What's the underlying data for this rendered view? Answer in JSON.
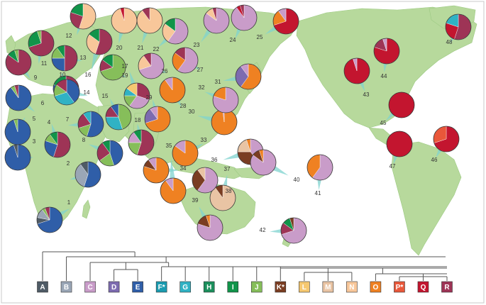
{
  "haplogroups": [
    {
      "label": "A",
      "color": "#4f5b66"
    },
    {
      "label": "B",
      "color": "#9aa6b6"
    },
    {
      "label": "C",
      "color": "#c99cc9"
    },
    {
      "label": "D",
      "color": "#7d6bb0"
    },
    {
      "label": "E",
      "color": "#2f5ea8"
    },
    {
      "label": "F*",
      "color": "#1a9bb0"
    },
    {
      "label": "G",
      "color": "#30b2c4"
    },
    {
      "label": "H",
      "color": "#1b8f5c"
    },
    {
      "label": "I",
      "color": "#11944a"
    },
    {
      "label": "J",
      "color": "#86be5a"
    },
    {
      "label": "K*",
      "color": "#7a3d22"
    },
    {
      "label": "L",
      "color": "#f5c871"
    },
    {
      "label": "M",
      "color": "#e9c4a4"
    },
    {
      "label": "N",
      "color": "#f8c79a"
    },
    {
      "label": "O",
      "color": "#ef8122"
    },
    {
      "label": "P*",
      "color": "#e9573a"
    },
    {
      "label": "Q",
      "color": "#c3152f"
    },
    {
      "label": "R",
      "color": "#9e3456"
    }
  ],
  "populations": [
    {
      "id": "1",
      "slices": {
        "E": 70,
        "A": 8,
        "B": 12,
        "J": 4,
        "R": 6
      }
    },
    {
      "id": "2",
      "slices": {
        "E": 55,
        "B": 35,
        "A": 10
      }
    },
    {
      "id": "3",
      "slices": {
        "E": 95,
        "A": 5
      }
    },
    {
      "id": "4",
      "slices": {
        "R": 55,
        "E": 25,
        "J": 10,
        "I": 10
      }
    },
    {
      "id": "5",
      "slices": {
        "E": 95,
        "J": 5
      }
    },
    {
      "id": "6",
      "slices": {
        "E": 90,
        "J": 5,
        "R": 5
      }
    },
    {
      "id": "7",
      "slices": {
        "E": 55,
        "J": 15,
        "R": 20,
        "G": 10
      }
    },
    {
      "id": "8",
      "slices": {
        "E": 45,
        "J": 20,
        "R": 25,
        "I": 10
      }
    },
    {
      "id": "9",
      "slices": {
        "R": 85,
        "I": 10,
        "J": 5
      }
    },
    {
      "id": "10",
      "slices": {
        "R": 40,
        "F*": 20,
        "E": 20,
        "I": 20
      }
    },
    {
      "id": "11",
      "slices": {
        "R": 70,
        "I": 25,
        "J": 5
      }
    },
    {
      "id": "12",
      "slices": {
        "N": 55,
        "R": 25,
        "I": 20
      }
    },
    {
      "id": "13",
      "slices": {
        "R": 50,
        "E": 25,
        "J": 15,
        "I": 10
      }
    },
    {
      "id": "14",
      "slices": {
        "E": 40,
        "G": 30,
        "J": 15,
        "R": 15
      }
    },
    {
      "id": "15",
      "slices": {
        "J": 45,
        "G": 30,
        "R": 15,
        "E": 10
      }
    },
    {
      "id": "16",
      "slices": {
        "R": 55,
        "N": 30,
        "I": 15
      }
    },
    {
      "id": "17",
      "slices": {
        "R": 30,
        "C": 30,
        "J": 15,
        "G": 10,
        "L": 15
      }
    },
    {
      "id": "18",
      "slices": {
        "R": 55,
        "J": 20,
        "C": 15,
        "I": 10
      }
    },
    {
      "id": "19",
      "slices": {
        "J": 70,
        "R": 15,
        "I": 15
      }
    },
    {
      "id": "20",
      "slices": {
        "N": 95,
        "Q": 5
      }
    },
    {
      "id": "21",
      "slices": {
        "N": 90,
        "R": 10
      }
    },
    {
      "id": "22",
      "slices": {
        "C": 60,
        "N": 25,
        "I": 15
      }
    },
    {
      "id": "23",
      "slices": {
        "C": 85,
        "N": 10,
        "R": 5
      }
    },
    {
      "id": "24",
      "slices": {
        "C": 90,
        "Q": 5,
        "R": 5
      }
    },
    {
      "id": "25",
      "slices": {
        "Q": 70,
        "O": 20,
        "C": 10
      }
    },
    {
      "id": "26",
      "slices": {
        "C": 70,
        "N": 20,
        "R": 10
      }
    },
    {
      "id": "27",
      "slices": {
        "C": 60,
        "O": 25,
        "R": 15
      }
    },
    {
      "id": "28",
      "slices": {
        "O": 90,
        "C": 10
      }
    },
    {
      "id": "29",
      "slices": {
        "O": 70,
        "D": 20,
        "C": 10
      }
    },
    {
      "id": "30",
      "slices": {
        "O": 98,
        "C": 2
      }
    },
    {
      "id": "31",
      "slices": {
        "O": 60,
        "D": 30,
        "C": 10
      }
    },
    {
      "id": "32",
      "slices": {
        "C": 80,
        "O": 20
      }
    },
    {
      "id": "33",
      "slices": {
        "O": 85,
        "C": 15
      }
    },
    {
      "id": "34",
      "slices": {
        "O": 80,
        "K*": 10,
        "C": 10
      }
    },
    {
      "id": "35",
      "slices": {
        "O": 90,
        "C": 10
      }
    },
    {
      "id": "36",
      "slices": {
        "C": 40,
        "K*": 35,
        "M": 20,
        "O": 5
      }
    },
    {
      "id": "37",
      "slices": {
        "M": 90,
        "K*": 10
      }
    },
    {
      "id": "38",
      "slices": {
        "C": 60,
        "K*": 30,
        "M": 10
      }
    },
    {
      "id": "39",
      "slices": {
        "C": 80,
        "K*": 15,
        "O": 5
      }
    },
    {
      "id": "40",
      "slices": {
        "C": 85,
        "K*": 10,
        "O": 5
      }
    },
    {
      "id": "41",
      "slices": {
        "C": 60,
        "O": 40
      }
    },
    {
      "id": "42",
      "slices": {
        "C": 70,
        "R": 15,
        "I": 10,
        "K*": 5
      }
    },
    {
      "id": "43",
      "slices": {
        "Q": 95,
        "C": 5
      }
    },
    {
      "id": "44",
      "slices": {
        "Q": 80,
        "R": 15,
        "C": 5
      }
    },
    {
      "id": "45",
      "slices": {
        "Q": 100
      }
    },
    {
      "id": "46",
      "slices": {
        "Q": 70,
        "P*": 30
      }
    },
    {
      "id": "47",
      "slices": {
        "Q": 100
      }
    },
    {
      "id": "48",
      "slices": {
        "R": 55,
        "Q": 25,
        "G": 20
      }
    }
  ]
}
